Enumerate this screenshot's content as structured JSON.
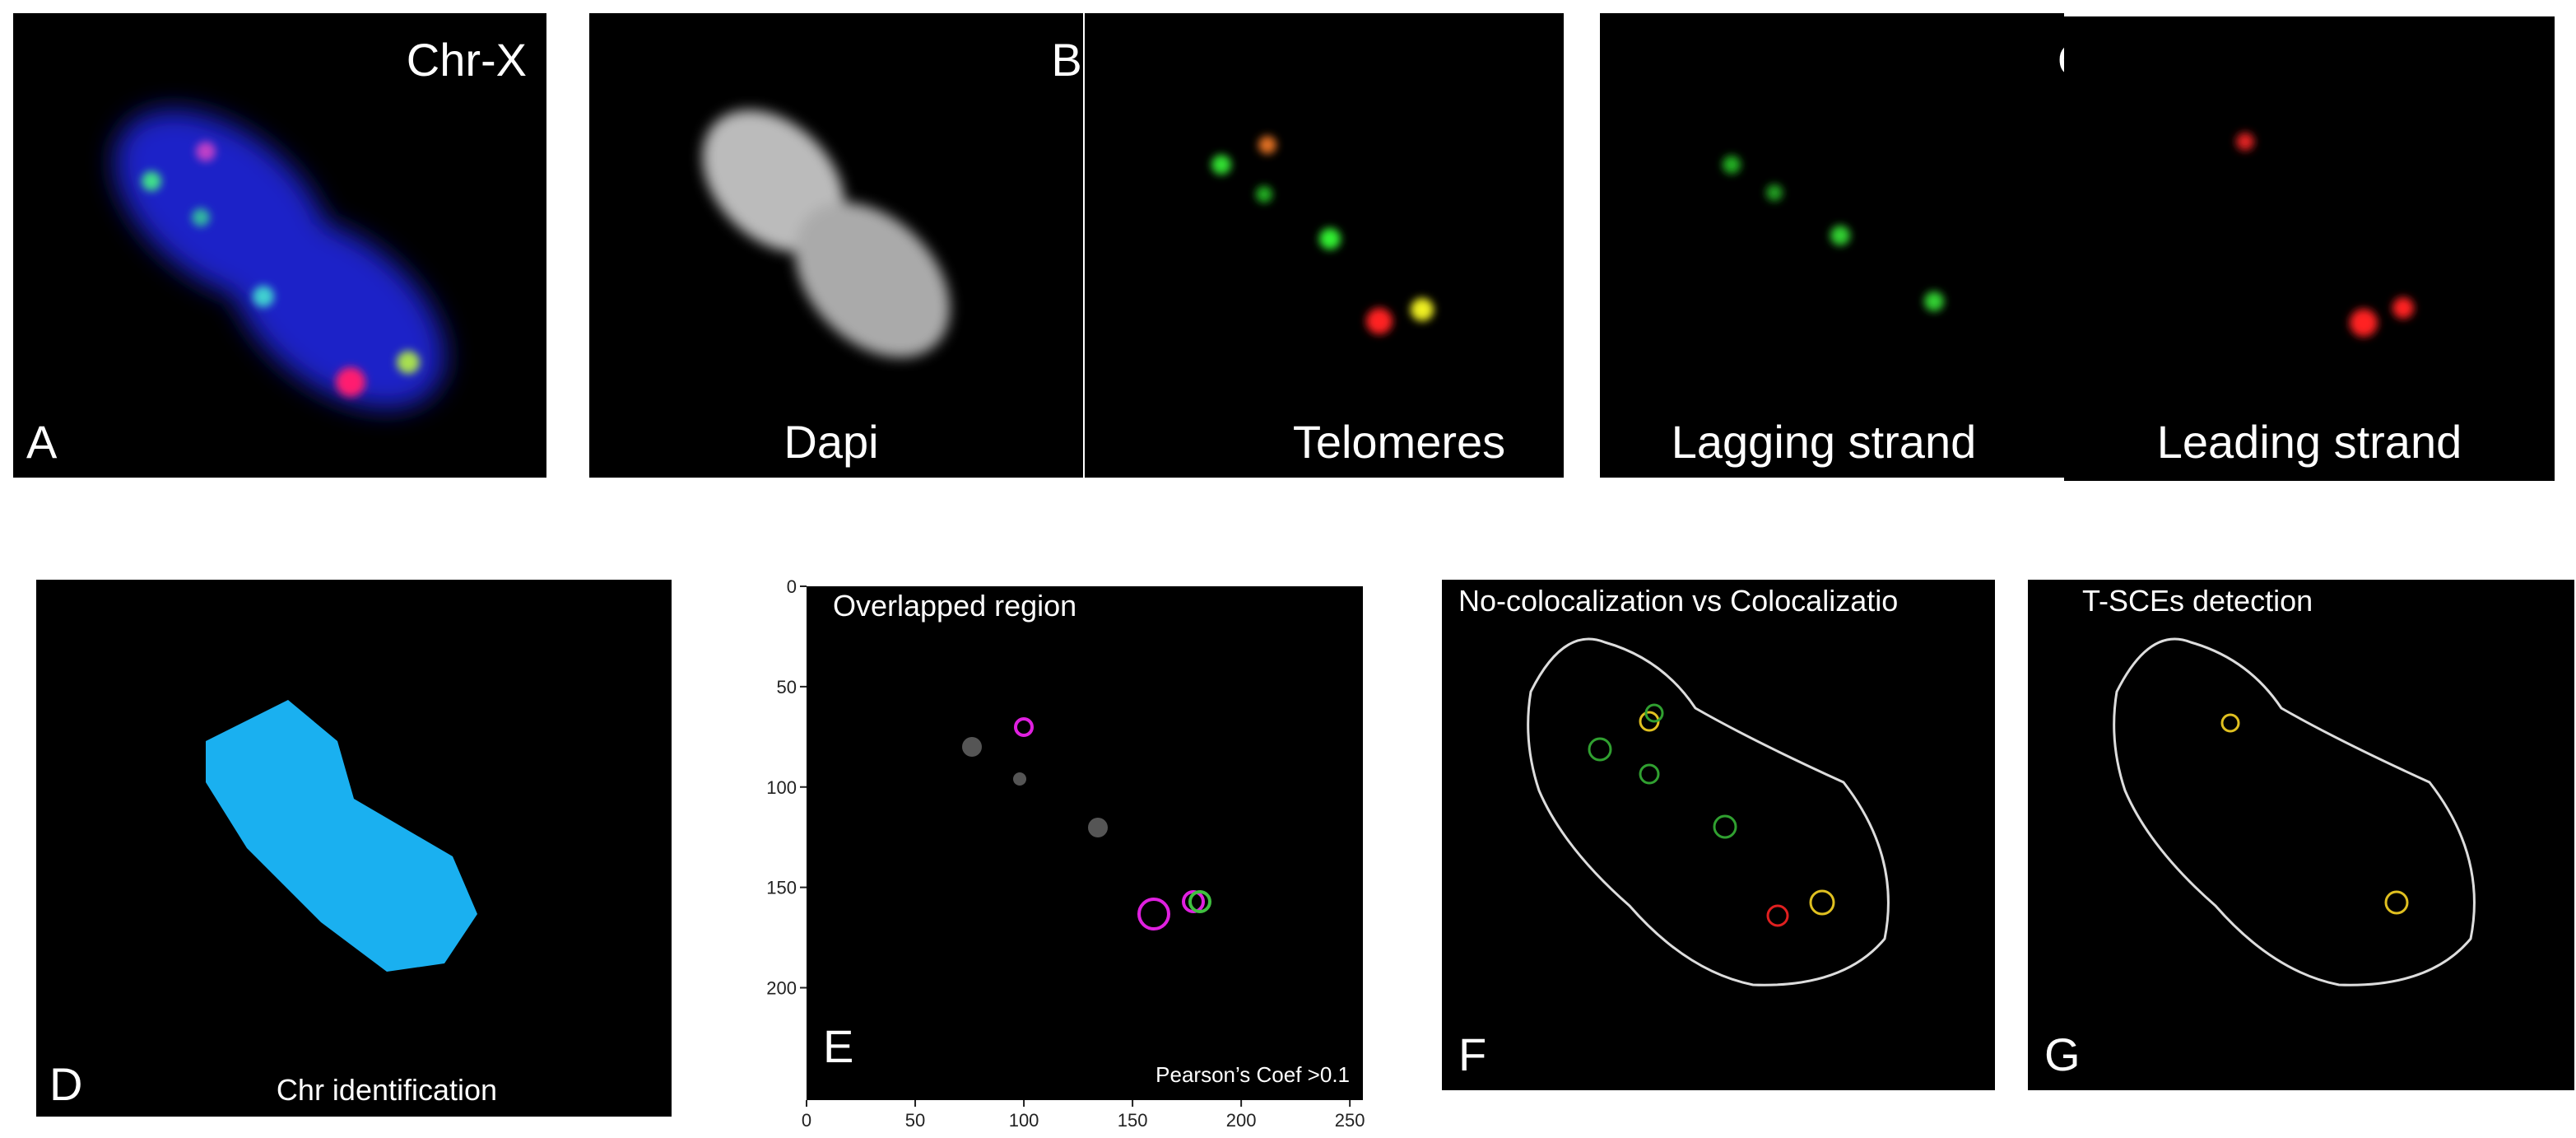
{
  "panels": {
    "a": {
      "letter": "A",
      "title": "Chr-X"
    },
    "b": {
      "letter": "B",
      "caption": "Dapi"
    },
    "telomeres": {
      "caption": "Telomeres"
    },
    "c": {
      "letter": "C",
      "caption": "Lagging strand"
    },
    "leading": {
      "caption": "Leading strand"
    },
    "d": {
      "letter": "D",
      "caption": "Chr identification"
    },
    "e": {
      "letter": "E",
      "title": "Overlapped region",
      "note": "Pearson’s Coef >0.1",
      "xlim": [
        0,
        256
      ],
      "ylim": [
        0,
        256
      ],
      "xticks": [
        0,
        50,
        100,
        150,
        200,
        250
      ],
      "yticks": [
        0,
        50,
        100,
        150,
        200
      ]
    },
    "f": {
      "letter": "F",
      "title": "No-colocalization vs Colocalizatio"
    },
    "g": {
      "letter": "G",
      "title": "T-SCEs detection"
    }
  }
}
